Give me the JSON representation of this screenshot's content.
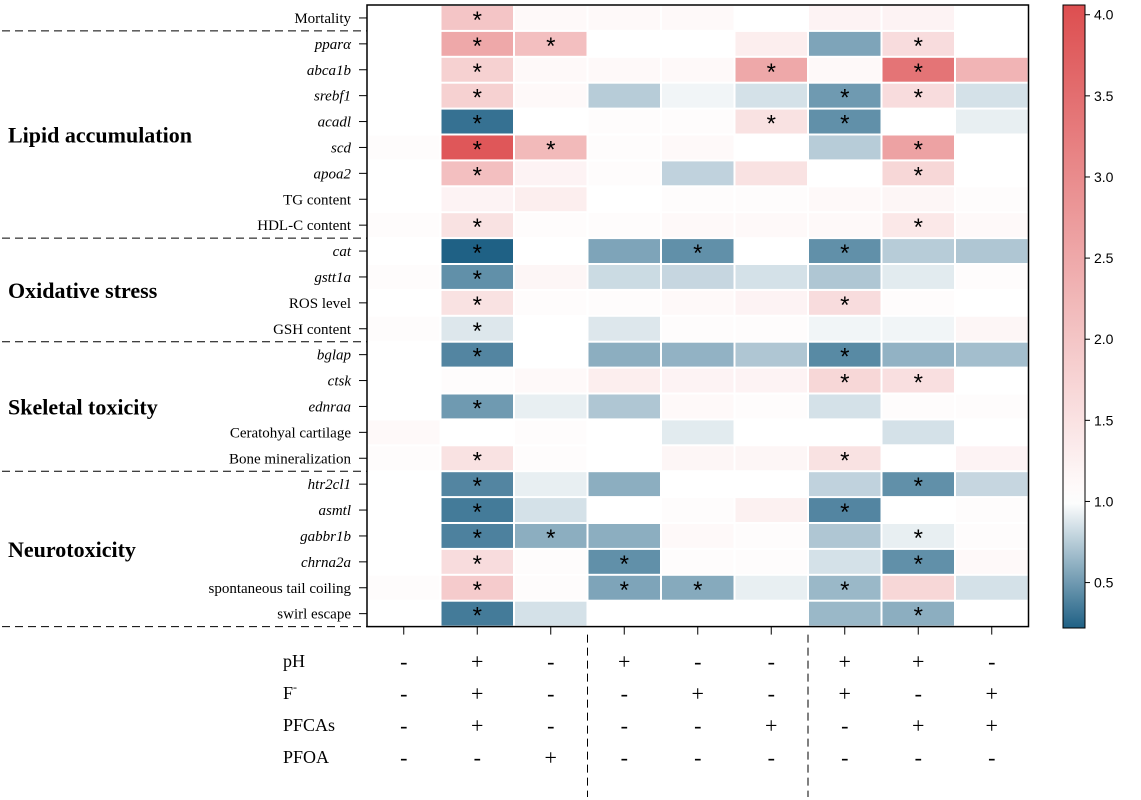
{
  "chart_data": {
    "type": "heatmap",
    "rows": [
      "Mortality",
      "pparα",
      "abca1b",
      "srebf1",
      "acadl",
      "scd",
      "apoa2",
      "TG content",
      "HDL-C content",
      "cat",
      "gstt1a",
      "ROS level",
      "GSH content",
      "bglap",
      "ctsk",
      "ednraa",
      "Ceratohyal cartilage",
      "Bone mineralization",
      "htr2cl1",
      "asmtl",
      "gabbr1b",
      "chrna2a",
      "spontaneous tail coiling",
      "swirl escape"
    ],
    "italic_rows": [
      "pparα",
      "abca1b",
      "srebf1",
      "acadl",
      "scd",
      "apoa2",
      "cat",
      "gstt1a",
      "bglap",
      "ctsk",
      "ednraa",
      "htr2cl1",
      "asmtl",
      "gabbr1b",
      "chrna2a"
    ],
    "groups": [
      {
        "label": "Lipid accumulation",
        "start": 1,
        "end": 8
      },
      {
        "label": "Oxidative stress",
        "start": 9,
        "end": 12
      },
      {
        "label": "Skeletal toxicity",
        "start": 13,
        "end": 17
      },
      {
        "label": "Neurotoxicity",
        "start": 18,
        "end": 23
      }
    ],
    "values": [
      [
        1.0,
        2.0,
        1.1,
        1.1,
        1.1,
        1.0,
        1.2,
        1.2,
        1.0
      ],
      [
        1.0,
        2.5,
        2.1,
        1.0,
        1.0,
        1.3,
        0.55,
        1.6,
        1.0
      ],
      [
        1.0,
        1.8,
        1.1,
        1.1,
        1.1,
        2.5,
        1.1,
        3.4,
        2.3
      ],
      [
        1.0,
        1.8,
        1.1,
        0.75,
        0.95,
        0.85,
        0.5,
        1.6,
        0.85
      ],
      [
        1.0,
        0.3,
        1.0,
        1.05,
        1.05,
        1.5,
        0.45,
        1.0,
        0.92
      ],
      [
        1.05,
        3.9,
        2.2,
        1.05,
        1.1,
        1.0,
        0.75,
        2.6,
        1.0
      ],
      [
        1.0,
        2.1,
        1.2,
        1.05,
        0.78,
        1.5,
        1.0,
        1.7,
        1.0
      ],
      [
        1.0,
        1.2,
        1.3,
        1.0,
        1.05,
        1.05,
        1.1,
        1.15,
        1.05
      ],
      [
        1.05,
        1.5,
        1.05,
        1.05,
        1.1,
        1.1,
        1.1,
        1.4,
        1.1
      ],
      [
        1.0,
        0.15,
        1.0,
        0.55,
        0.45,
        1.0,
        0.45,
        0.75,
        0.72
      ],
      [
        1.05,
        0.45,
        1.15,
        0.82,
        0.8,
        0.85,
        0.72,
        0.9,
        1.05
      ],
      [
        1.0,
        1.5,
        1.05,
        1.05,
        1.1,
        1.2,
        1.6,
        1.05,
        1.0
      ],
      [
        1.05,
        0.88,
        1.0,
        0.88,
        1.05,
        1.05,
        0.95,
        0.95,
        1.15
      ],
      [
        1.0,
        0.4,
        1.0,
        0.6,
        0.62,
        0.72,
        0.42,
        0.62,
        0.68
      ],
      [
        1.0,
        1.05,
        1.1,
        1.3,
        1.2,
        1.2,
        1.7,
        1.55,
        1.0
      ],
      [
        1.0,
        0.5,
        0.92,
        0.72,
        1.1,
        1.05,
        0.85,
        1.05,
        1.05
      ],
      [
        1.1,
        1.0,
        1.05,
        1.0,
        0.9,
        1.0,
        1.0,
        0.85,
        1.0
      ],
      [
        1.05,
        1.5,
        1.05,
        1.0,
        1.15,
        1.15,
        1.5,
        1.0,
        1.2
      ],
      [
        1.0,
        0.4,
        0.92,
        0.6,
        1.0,
        1.0,
        0.78,
        0.45,
        0.8
      ],
      [
        1.0,
        0.35,
        0.85,
        1.0,
        1.05,
        1.25,
        0.4,
        1.0,
        1.05
      ],
      [
        1.0,
        0.38,
        0.6,
        0.6,
        1.1,
        1.05,
        0.72,
        0.92,
        1.05
      ],
      [
        1.0,
        1.6,
        1.05,
        0.45,
        1.05,
        1.05,
        0.85,
        0.45,
        1.1
      ],
      [
        1.05,
        1.9,
        1.05,
        0.55,
        0.58,
        0.92,
        0.65,
        1.7,
        0.85
      ],
      [
        1.0,
        0.35,
        0.85,
        1.0,
        1.0,
        1.0,
        0.65,
        0.6,
        1.0
      ]
    ],
    "significant": [
      [
        0,
        1
      ],
      [
        1,
        1
      ],
      [
        1,
        2
      ],
      [
        1,
        7
      ],
      [
        2,
        1
      ],
      [
        2,
        5
      ],
      [
        2,
        7
      ],
      [
        3,
        1
      ],
      [
        3,
        6
      ],
      [
        3,
        7
      ],
      [
        4,
        1
      ],
      [
        4,
        5
      ],
      [
        4,
        6
      ],
      [
        5,
        1
      ],
      [
        5,
        2
      ],
      [
        5,
        7
      ],
      [
        6,
        1
      ],
      [
        6,
        7
      ],
      [
        8,
        1
      ],
      [
        8,
        7
      ],
      [
        9,
        1
      ],
      [
        9,
        4
      ],
      [
        9,
        6
      ],
      [
        10,
        1
      ],
      [
        11,
        1
      ],
      [
        11,
        6
      ],
      [
        12,
        1
      ],
      [
        13,
        1
      ],
      [
        13,
        6
      ],
      [
        14,
        6
      ],
      [
        14,
        7
      ],
      [
        15,
        1
      ],
      [
        17,
        1
      ],
      [
        17,
        6
      ],
      [
        18,
        1
      ],
      [
        18,
        7
      ],
      [
        19,
        1
      ],
      [
        19,
        6
      ],
      [
        20,
        1
      ],
      [
        20,
        2
      ],
      [
        20,
        7
      ],
      [
        21,
        1
      ],
      [
        21,
        3
      ],
      [
        21,
        7
      ],
      [
        22,
        1
      ],
      [
        22,
        3
      ],
      [
        22,
        4
      ],
      [
        22,
        6
      ],
      [
        23,
        1
      ],
      [
        23,
        7
      ]
    ],
    "significance_marker": "*",
    "factors": [
      {
        "label": "pH",
        "signs": [
          "-",
          "+",
          "-",
          "+",
          "-",
          "-",
          "+",
          "+",
          "-"
        ]
      },
      {
        "label": "F",
        "superscript": "-",
        "signs": [
          "-",
          "+",
          "-",
          "-",
          "+",
          "-",
          "+",
          "-",
          "+"
        ]
      },
      {
        "label": "PFCAs",
        "signs": [
          "-",
          "+",
          "-",
          "-",
          "-",
          "+",
          "-",
          "+",
          "+"
        ]
      },
      {
        "label": "PFOA",
        "signs": [
          "-",
          "-",
          "+",
          "-",
          "-",
          "-",
          "-",
          "-",
          "-"
        ]
      }
    ],
    "column_separators_after": [
      2,
      5
    ],
    "colorbar": {
      "ticks": [
        "0.5",
        "1.0",
        "1.5",
        "2.0",
        "2.5",
        "3.0",
        "3.5",
        "4.0"
      ],
      "tick_values": [
        0.5,
        1.0,
        1.5,
        2.0,
        2.5,
        3.0,
        3.5,
        4.0
      ],
      "min": 0.22,
      "max": 4.06,
      "low_color": "#1f6185",
      "mid_color": "#ffffff",
      "high_color": "#dd4e50"
    }
  }
}
